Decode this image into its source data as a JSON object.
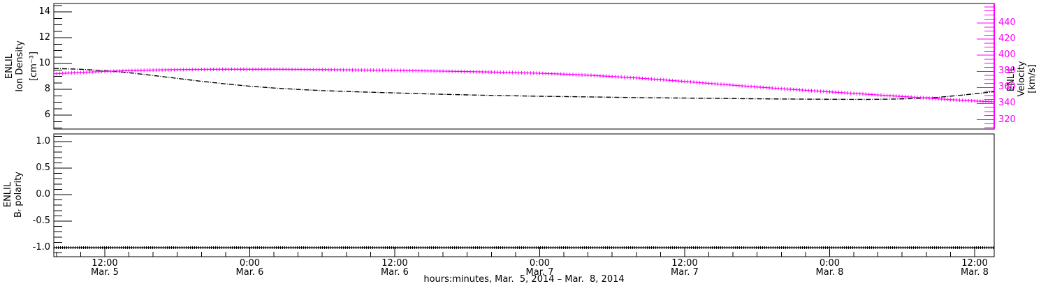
{
  "colors": {
    "background": "#ffffff",
    "axis": "#000000",
    "density_series": "#000000",
    "velocity_series": "#ff00ff",
    "polarity_series": "#000000"
  },
  "chart_data": [
    {
      "type": "line",
      "panel": "top",
      "xlim": [
        7.78,
        85.62
      ],
      "x_unit": "hours since Mar. 5, 2014 00:00",
      "grid": false,
      "legend": "none",
      "left_axis": {
        "label": [
          "ENLIL",
          "Ion Density",
          "[cm⁻³]"
        ],
        "ylim": [
          4.92,
          14.65
        ],
        "ticks": [
          6,
          8,
          10,
          12,
          14
        ],
        "tick_labels": [
          "6",
          "8",
          "10",
          "12",
          "14"
        ],
        "minor_step": 0.5,
        "color": "#000000"
      },
      "right_axis": {
        "label": [
          "ENLIL",
          "Velocity",
          "[km/s]"
        ],
        "ylim": [
          308.3,
          464.3
        ],
        "ticks": [
          320,
          340,
          360,
          380,
          400,
          420,
          440
        ],
        "tick_labels": [
          "320",
          "340",
          "360",
          "380",
          "400",
          "420",
          "440"
        ],
        "minor_step": 5,
        "color": "#ff00ff"
      },
      "series": [
        {
          "name": "ion_density",
          "axis": "left",
          "color": "#000000",
          "style": "dash-dot",
          "points": [
            [
              7.78,
              9.62
            ],
            [
              9,
              9.58
            ],
            [
              10,
              9.55
            ],
            [
              11,
              9.5
            ],
            [
              12,
              9.44
            ],
            [
              13,
              9.37
            ],
            [
              14,
              9.28
            ],
            [
              15,
              9.18
            ],
            [
              16,
              9.07
            ],
            [
              17,
              8.96
            ],
            [
              18,
              8.85
            ],
            [
              19,
              8.73
            ],
            [
              20,
              8.62
            ],
            [
              21,
              8.52
            ],
            [
              22,
              8.42
            ],
            [
              23,
              8.33
            ],
            [
              24,
              8.24
            ],
            [
              26,
              8.1
            ],
            [
              28,
              7.99
            ],
            [
              30,
              7.9
            ],
            [
              33,
              7.8
            ],
            [
              36,
              7.72
            ],
            [
              39,
              7.64
            ],
            [
              42,
              7.57
            ],
            [
              45,
              7.51
            ],
            [
              48,
              7.46
            ],
            [
              52,
              7.41
            ],
            [
              56,
              7.36
            ],
            [
              60,
              7.32
            ],
            [
              64,
              7.28
            ],
            [
              68,
              7.25
            ],
            [
              72,
              7.23
            ],
            [
              75,
              7.22
            ],
            [
              77,
              7.24
            ],
            [
              79,
              7.28
            ],
            [
              81,
              7.38
            ],
            [
              83,
              7.55
            ],
            [
              84.5,
              7.7
            ],
            [
              85.62,
              7.82
            ]
          ]
        },
        {
          "name": "velocity",
          "axis": "right",
          "color": "#ff00ff",
          "style": "plus-markers",
          "points": [
            [
              7.78,
              377.0
            ],
            [
              9,
              377.9
            ],
            [
              10,
              378.6
            ],
            [
              11,
              379.3
            ],
            [
              12,
              379.9
            ],
            [
              13,
              380.4
            ],
            [
              14,
              380.9
            ],
            [
              15,
              381.3
            ],
            [
              16,
              381.6
            ],
            [
              18,
              382.1
            ],
            [
              20,
              382.4
            ],
            [
              22,
              382.55
            ],
            [
              24,
              382.6
            ],
            [
              26,
              382.55
            ],
            [
              28,
              382.4
            ],
            [
              30,
              382.15
            ],
            [
              32,
              381.9
            ],
            [
              34,
              381.55
            ],
            [
              36,
              381.2
            ],
            [
              38,
              380.7
            ],
            [
              40,
              380.2
            ],
            [
              42,
              379.7
            ],
            [
              44,
              379.1
            ],
            [
              46,
              378.4
            ],
            [
              48,
              377.6
            ],
            [
              50,
              376.5
            ],
            [
              52,
              375.2
            ],
            [
              54,
              373.6
            ],
            [
              56,
              371.8
            ],
            [
              58,
              369.7
            ],
            [
              60,
              367.4
            ],
            [
              62,
              365.1
            ],
            [
              64,
              362.8
            ],
            [
              66,
              360.6
            ],
            [
              68,
              358.5
            ],
            [
              70,
              356.5
            ],
            [
              72,
              354.5
            ],
            [
              74,
              352.6
            ],
            [
              76,
              350.7
            ],
            [
              78,
              348.8
            ],
            [
              80,
              346.9
            ],
            [
              82,
              344.9
            ],
            [
              84,
              343.2
            ],
            [
              85.62,
              342.1
            ]
          ]
        }
      ]
    },
    {
      "type": "line",
      "panel": "bottom",
      "xlim": [
        7.78,
        85.62
      ],
      "grid": false,
      "legend": "none",
      "left_axis": {
        "label": [
          "ENLIL",
          "Bᵣ polarity"
        ],
        "ylim": [
          -1.171,
          1.145
        ],
        "ticks": [
          -1.0,
          -0.5,
          0.0,
          0.5,
          1.0
        ],
        "tick_labels": [
          "-1.0",
          "-0.5",
          "0.0",
          "0.5",
          "1.0"
        ],
        "minor_step": 0.1,
        "color": "#000000"
      },
      "series": [
        {
          "name": "br_polarity",
          "axis": "left",
          "color": "#000000",
          "style": "thick-dotted",
          "points": [
            [
              7.78,
              -1.0
            ],
            [
              85.62,
              -1.0
            ]
          ]
        }
      ],
      "x_axis": {
        "major_hours": [
          12,
          24,
          36,
          48,
          60,
          72,
          84
        ],
        "major_labels": [
          [
            "12:00",
            "Mar. 5"
          ],
          [
            "0:00",
            "Mar. 6"
          ],
          [
            "12:00",
            "Mar. 6"
          ],
          [
            "0:00",
            "Mar. 7"
          ],
          [
            "12:00",
            "Mar. 7"
          ],
          [
            "0:00",
            "Mar. 8"
          ],
          [
            "12:00",
            "Mar. 8"
          ]
        ],
        "minor_step_hours": 2
      },
      "xlabel": "hours:minutes, Mar.  5, 2014 – Mar.  8, 2014"
    }
  ]
}
